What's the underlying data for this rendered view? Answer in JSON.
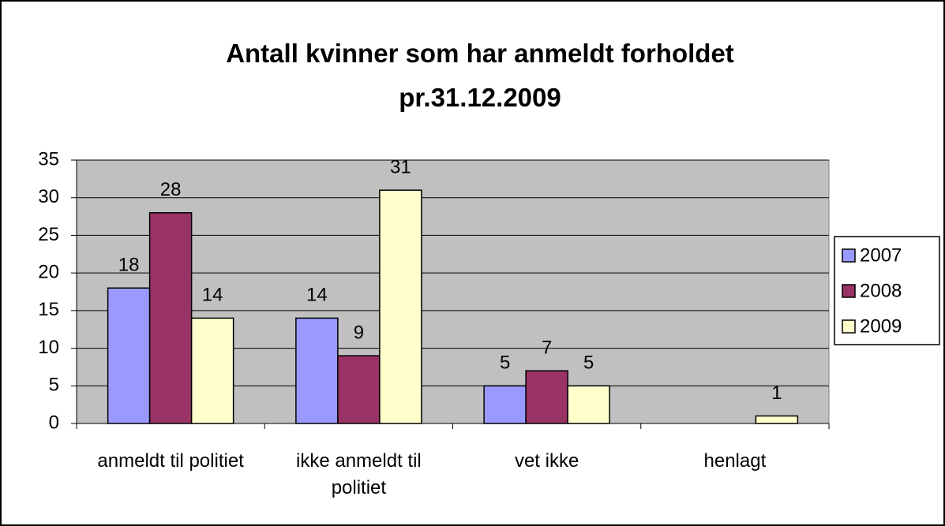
{
  "chart_data": {
    "type": "bar",
    "title": "Antall kvinner som har anmeldt forholdet pr.31.12.2009",
    "categories": [
      "anmeldt til politiet",
      "ikke anmeldt til politiet",
      "vet ikke",
      "henlagt"
    ],
    "series": [
      {
        "name": "2007",
        "color": "#9999ff",
        "values": [
          18,
          14,
          5,
          null
        ]
      },
      {
        "name": "2008",
        "color": "#993366",
        "values": [
          28,
          9,
          7,
          null
        ]
      },
      {
        "name": "2009",
        "color": "#ffffcc",
        "values": [
          14,
          31,
          5,
          1
        ]
      }
    ],
    "ylim": [
      0,
      35
    ],
    "yticks": [
      0,
      5,
      10,
      15,
      20,
      25,
      30,
      35
    ],
    "grid": true,
    "legend": "right"
  }
}
